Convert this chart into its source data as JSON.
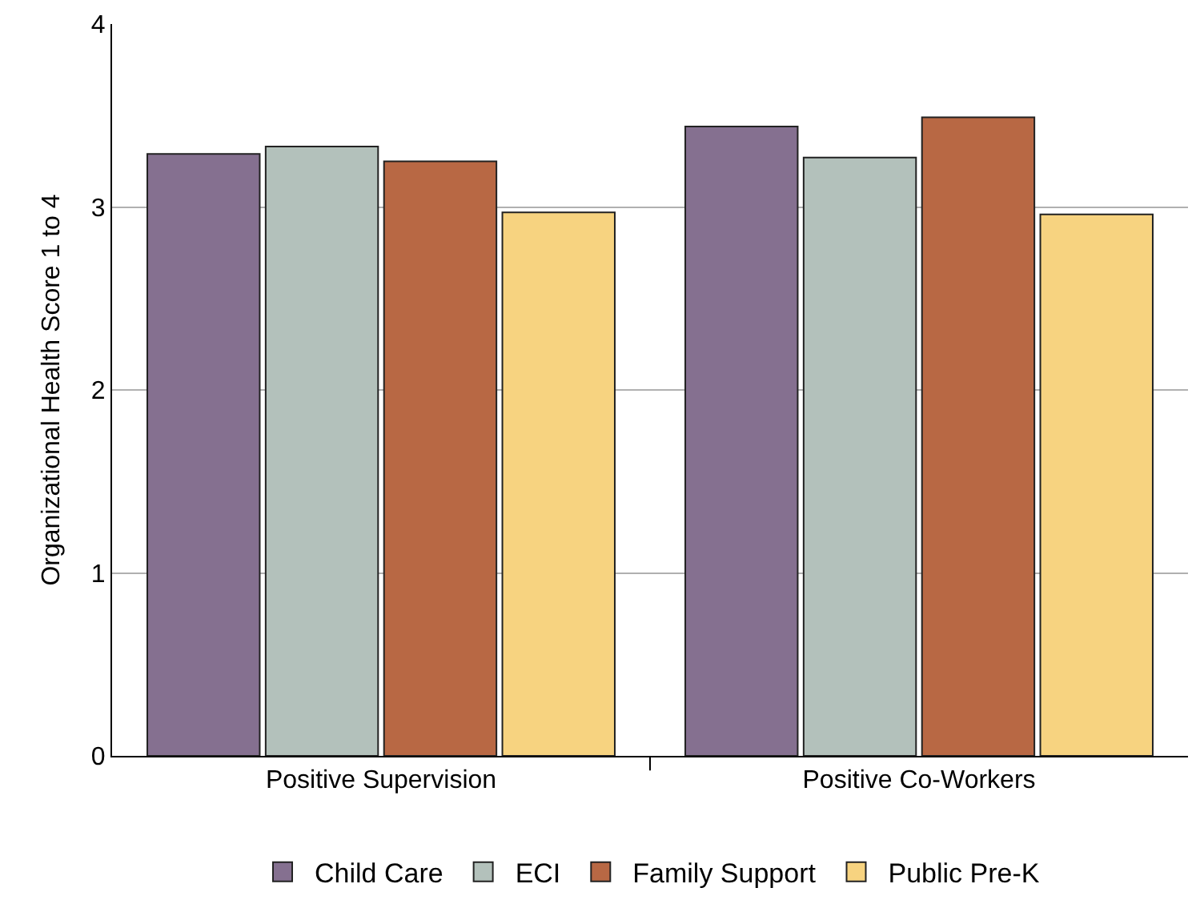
{
  "chart_data": {
    "type": "bar",
    "ylabel": "Organizational Health Score 1 to 4",
    "categories": [
      "Positive Supervision",
      "Positive Co-Workers"
    ],
    "series": [
      {
        "name": "Child Care",
        "color": "#857090",
        "values": [
          3.29,
          3.44
        ]
      },
      {
        "name": "ECI",
        "color": "#b3c1bb",
        "values": [
          3.33,
          3.27
        ]
      },
      {
        "name": "Family Support",
        "color": "#b86844",
        "values": [
          3.25,
          3.49
        ]
      },
      {
        "name": "Public Pre-K",
        "color": "#f7d380",
        "values": [
          2.97,
          2.96
        ]
      }
    ],
    "ylim": [
      0,
      4
    ],
    "yticks": [
      0,
      1,
      2,
      3,
      4
    ],
    "grid": "y",
    "legend": "bottom"
  }
}
